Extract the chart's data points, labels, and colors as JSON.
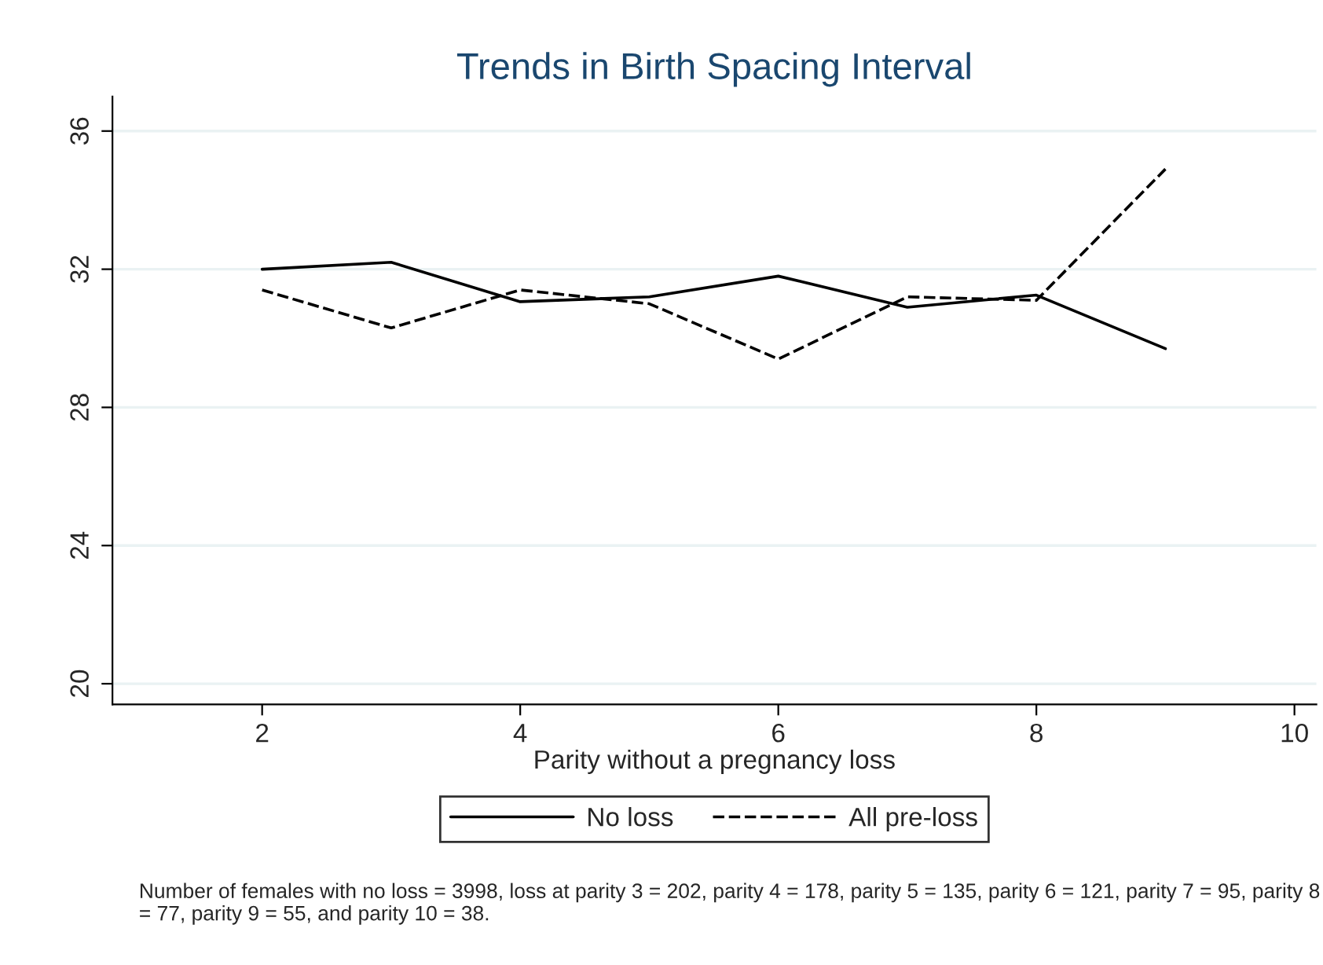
{
  "chart_data": {
    "type": "line",
    "title": "Trends in Birth Spacing Interval",
    "xlabel": "Parity without a pregnancy loss",
    "x": [
      2,
      3,
      4,
      5,
      6,
      7,
      8,
      9
    ],
    "series": [
      {
        "name": "No loss",
        "color": "#000000",
        "line_style": "solid",
        "values": [
          32.0,
          32.2,
          31.06,
          31.2,
          31.8,
          30.9,
          31.25,
          29.7
        ]
      },
      {
        "name": "All pre-loss",
        "color": "#000000",
        "line_style": "dashed",
        "values": [
          31.4,
          30.3,
          31.4,
          31.0,
          29.4,
          31.2,
          31.1,
          34.9
        ]
      }
    ],
    "xlim": [
      0.84,
      10.17
    ],
    "xticks": [
      2,
      4,
      6,
      8,
      10
    ],
    "ylim": [
      19.4,
      37
    ],
    "yticks": [
      20,
      24,
      28,
      32,
      36
    ],
    "grid": "y",
    "legend": "bottom",
    "marker": "none",
    "annotations": [
      "Number of females with no loss = 3998, loss at parity 3 = 202, parity 4 = 178, parity 5 = 135, parity 6 = 121, parity 7 = 95, parity 8 = 77, parity 9 = 55, and parity 10 = 38."
    ]
  }
}
